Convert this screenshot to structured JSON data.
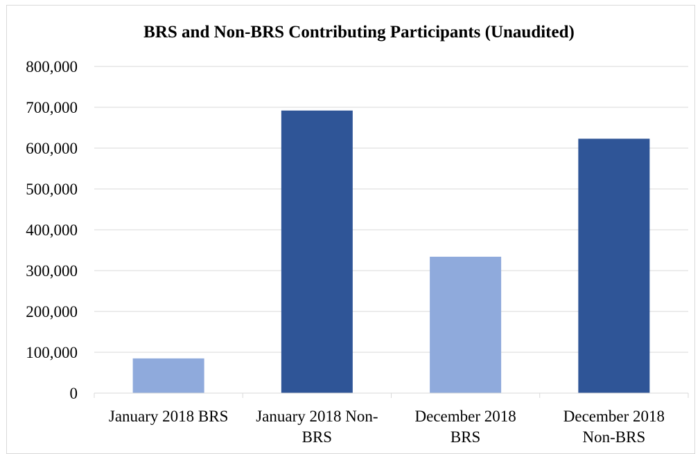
{
  "chart_data": {
    "type": "bar",
    "title": "BRS and Non-BRS Contributing Participants (Unaudited)",
    "categories": [
      [
        "January 2018 BRS"
      ],
      [
        "January 2018 Non-",
        "BRS"
      ],
      [
        "December 2018",
        "BRS"
      ],
      [
        "December 2018",
        "Non-BRS"
      ]
    ],
    "values": [
      85000,
      692000,
      334000,
      623000
    ],
    "colors": [
      "#8faadc",
      "#2f5597",
      "#8faadc",
      "#2f5597"
    ],
    "ylim": [
      0,
      800000
    ],
    "yticks": [
      "0",
      "100,000",
      "200,000",
      "300,000",
      "400,000",
      "500,000",
      "600,000",
      "700,000",
      "800,000"
    ],
    "grid": true,
    "legend": "none",
    "gridline_color": "#d9d9d9"
  }
}
